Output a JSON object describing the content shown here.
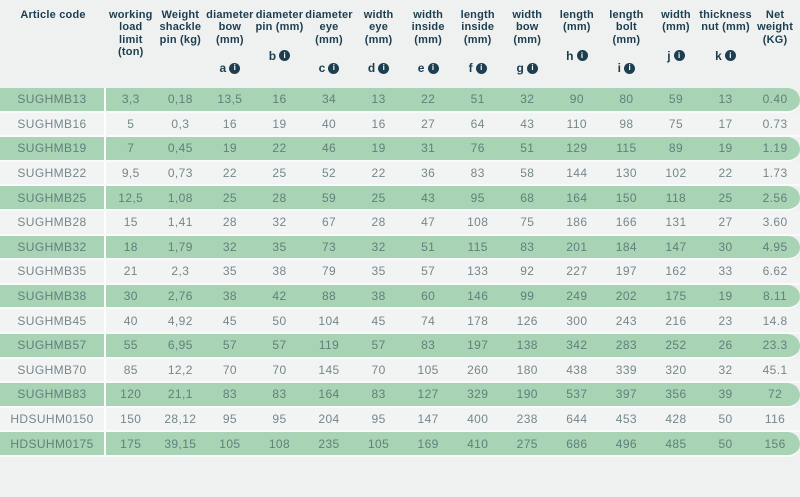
{
  "colors": {
    "page_bg": "#eff1f1",
    "green_row": "#a8d3b5",
    "row_alt": "#f2f4f4",
    "header_text": "#1c3e4f",
    "body_text": "#75868b",
    "icon_bg": "#1c3e4f"
  },
  "icons": {
    "info_glyph": "i"
  },
  "chart_data": {
    "type": "table",
    "title": "Shackle specification table"
  },
  "table": {
    "columns": [
      {
        "key": "article_code",
        "label": "Article code",
        "letter": null
      },
      {
        "key": "wll_ton",
        "label": "working\nload\nlimit\n(ton)",
        "letter": null
      },
      {
        "key": "weight_pin",
        "label": "Weight\nshackle\npin (kg)",
        "letter": null
      },
      {
        "key": "diameter_bow",
        "label": "diameter\nbow\n(mm)",
        "letter": "a"
      },
      {
        "key": "diameter_pin",
        "label": "diameter\npin (mm)",
        "letter": "b"
      },
      {
        "key": "diameter_eye",
        "label": "diameter\neye (mm)",
        "letter": "c"
      },
      {
        "key": "width_eye",
        "label": "width\neye\n(mm)",
        "letter": "d"
      },
      {
        "key": "width_inside",
        "label": "width\ninside\n(mm)",
        "letter": "e"
      },
      {
        "key": "length_inside",
        "label": "length\ninside\n(mm)",
        "letter": "f"
      },
      {
        "key": "width_bow",
        "label": "width\nbow\n(mm)",
        "letter": "g"
      },
      {
        "key": "length",
        "label": "length\n(mm)",
        "letter": "h"
      },
      {
        "key": "length_bolt",
        "label": "length\nbolt\n(mm)",
        "letter": "i"
      },
      {
        "key": "width",
        "label": "width\n(mm)",
        "letter": "j"
      },
      {
        "key": "thickness_nut",
        "label": "thickness\nnut (mm)",
        "letter": "k"
      },
      {
        "key": "net_weight",
        "label": "Net\nweight\n(KG)",
        "letter": null
      }
    ],
    "rows": [
      {
        "article": "SUGHMB13",
        "values": [
          "3,3",
          "0,18",
          "13,5",
          "16",
          "34",
          "13",
          "22",
          "51",
          "32",
          "90",
          "80",
          "59",
          "13",
          "0.40"
        ]
      },
      {
        "article": "SUGHMB16",
        "values": [
          "5",
          "0,3",
          "16",
          "19",
          "40",
          "16",
          "27",
          "64",
          "43",
          "110",
          "98",
          "75",
          "17",
          "0.73"
        ]
      },
      {
        "article": "SUGHMB19",
        "values": [
          "7",
          "0,45",
          "19",
          "22",
          "46",
          "19",
          "31",
          "76",
          "51",
          "129",
          "115",
          "89",
          "19",
          "1.19"
        ]
      },
      {
        "article": "SUGHMB22",
        "values": [
          "9,5",
          "0,73",
          "22",
          "25",
          "52",
          "22",
          "36",
          "83",
          "58",
          "144",
          "130",
          "102",
          "22",
          "1.73"
        ]
      },
      {
        "article": "SUGHMB25",
        "values": [
          "12,5",
          "1,08",
          "25",
          "28",
          "59",
          "25",
          "43",
          "95",
          "68",
          "164",
          "150",
          "118",
          "25",
          "2.56"
        ]
      },
      {
        "article": "SUGHMB28",
        "values": [
          "15",
          "1,41",
          "28",
          "32",
          "67",
          "28",
          "47",
          "108",
          "75",
          "186",
          "166",
          "131",
          "27",
          "3.60"
        ]
      },
      {
        "article": "SUGHMB32",
        "values": [
          "18",
          "1,79",
          "32",
          "35",
          "73",
          "32",
          "51",
          "115",
          "83",
          "201",
          "184",
          "147",
          "30",
          "4.95"
        ]
      },
      {
        "article": "SUGHMB35",
        "values": [
          "21",
          "2,3",
          "35",
          "38",
          "79",
          "35",
          "57",
          "133",
          "92",
          "227",
          "197",
          "162",
          "33",
          "6.62"
        ]
      },
      {
        "article": "SUGHMB38",
        "values": [
          "30",
          "2,76",
          "38",
          "42",
          "88",
          "38",
          "60",
          "146",
          "99",
          "249",
          "202",
          "175",
          "19",
          "8.11"
        ]
      },
      {
        "article": "SUGHMB45",
        "values": [
          "40",
          "4,92",
          "45",
          "50",
          "104",
          "45",
          "74",
          "178",
          "126",
          "300",
          "243",
          "216",
          "23",
          "14.8"
        ]
      },
      {
        "article": "SUGHMB57",
        "values": [
          "55",
          "6,95",
          "57",
          "57",
          "119",
          "57",
          "83",
          "197",
          "138",
          "342",
          "283",
          "252",
          "26",
          "23.3"
        ]
      },
      {
        "article": "SUGHMB70",
        "values": [
          "85",
          "12,2",
          "70",
          "70",
          "145",
          "70",
          "105",
          "260",
          "180",
          "438",
          "339",
          "320",
          "32",
          "45.1"
        ]
      },
      {
        "article": "SUGHMB83",
        "values": [
          "120",
          "21,1",
          "83",
          "83",
          "164",
          "83",
          "127",
          "329",
          "190",
          "537",
          "397",
          "356",
          "39",
          "72"
        ]
      },
      {
        "article": "HDSUHM0150",
        "values": [
          "150",
          "28,12",
          "95",
          "95",
          "204",
          "95",
          "147",
          "400",
          "238",
          "644",
          "453",
          "428",
          "50",
          "116"
        ]
      },
      {
        "article": "HDSUHM0175",
        "values": [
          "175",
          "39,15",
          "105",
          "108",
          "235",
          "105",
          "169",
          "410",
          "275",
          "686",
          "496",
          "485",
          "50",
          "156"
        ]
      }
    ]
  }
}
